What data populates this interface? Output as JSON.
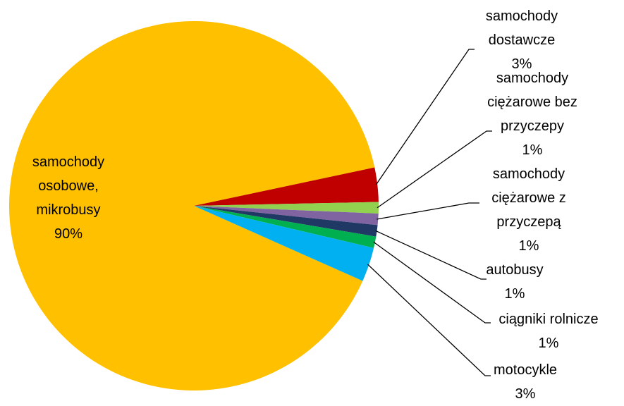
{
  "chart_data": {
    "type": "pie",
    "categories": [
      "samochody osobowe, mikrobusy",
      "samochody dostawcze",
      "samochody ciężarowe bez przyczepy",
      "samochody ciężarowe z przyczepą",
      "autobusy",
      "ciągniki rolnicze",
      "motocykle"
    ],
    "values": [
      90,
      3,
      1,
      1,
      1,
      1,
      3
    ],
    "value_labels": [
      "90%",
      "3%",
      "1%",
      "1%",
      "1%",
      "1%",
      "3%"
    ],
    "colors": [
      "#FFC000",
      "#C00000",
      "#92D050",
      "#8064A2",
      "#1F3864",
      "#00B050",
      "#00B0F0"
    ]
  }
}
